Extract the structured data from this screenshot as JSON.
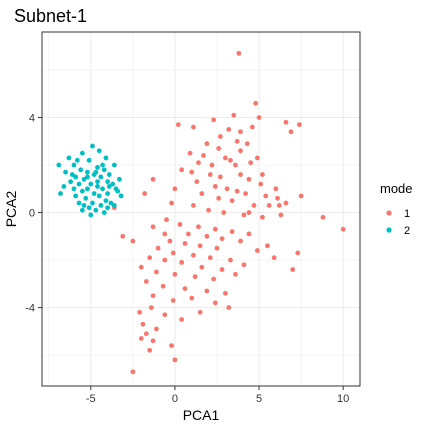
{
  "chart_data": {
    "type": "scatter",
    "title": "Subnet-1",
    "xlabel": "PCA1",
    "ylabel": "PCA2",
    "xlim": [
      -7.9,
      11.0
    ],
    "ylim": [
      -7.3,
      7.6
    ],
    "x_ticks": [
      -5,
      0,
      5,
      10
    ],
    "y_ticks": [
      -4,
      0,
      4
    ],
    "grid": true,
    "legend": {
      "title": "mode",
      "placement": "right"
    },
    "series": [
      {
        "name": "1",
        "color": "#F8766D",
        "points": [
          [
            3.8,
            6.7
          ],
          [
            4.8,
            4.6
          ],
          [
            3.5,
            4.1
          ],
          [
            5.0,
            4.0
          ],
          [
            0.2,
            3.7
          ],
          [
            1.1,
            3.6
          ],
          [
            2.3,
            3.9
          ],
          [
            3.2,
            3.5
          ],
          [
            3.9,
            3.4
          ],
          [
            4.6,
            3.6
          ],
          [
            6.6,
            3.8
          ],
          [
            7.4,
            3.7
          ],
          [
            6.9,
            3.4
          ],
          [
            3.7,
            3.0
          ],
          [
            4.3,
            2.9
          ],
          [
            1.7,
            2.4
          ],
          [
            2.6,
            2.7
          ],
          [
            3.0,
            2.3
          ],
          [
            1.4,
            2.1
          ],
          [
            2.2,
            2.0
          ],
          [
            3.3,
            2.2
          ],
          [
            3.6,
            2.0
          ],
          [
            4.5,
            2.1
          ],
          [
            4.9,
            2.3
          ],
          [
            0.4,
            1.8
          ],
          [
            1.0,
            1.7
          ],
          [
            2.1,
            1.6
          ],
          [
            2.7,
            1.5
          ],
          [
            3.9,
            1.6
          ],
          [
            4.4,
            1.4
          ],
          [
            5.1,
            1.2
          ],
          [
            1.3,
            1.3
          ],
          [
            2.4,
            1.1
          ],
          [
            3.1,
            1.0
          ],
          [
            3.7,
            0.9
          ],
          [
            4.2,
            0.8
          ],
          [
            5.4,
            0.7
          ],
          [
            6.1,
            0.6
          ],
          [
            7.5,
            0.7
          ],
          [
            0.0,
            1.0
          ],
          [
            1.6,
            0.8
          ],
          [
            2.6,
            0.6
          ],
          [
            3.4,
            0.5
          ],
          [
            4.7,
            0.3
          ],
          [
            5.6,
            0.3
          ],
          [
            6.6,
            0.4
          ],
          [
            -0.2,
            0.4
          ],
          [
            1.1,
            0.3
          ],
          [
            2.0,
            0.1
          ],
          [
            2.9,
            0.0
          ],
          [
            4.1,
            -0.1
          ],
          [
            5.2,
            -0.2
          ],
          [
            6.3,
            -0.1
          ],
          [
            -0.5,
            -0.3
          ],
          [
            0.3,
            -0.5
          ],
          [
            1.4,
            -0.6
          ],
          [
            2.4,
            -0.7
          ],
          [
            3.4,
            -0.8
          ],
          [
            4.4,
            -0.9
          ],
          [
            0.8,
            -0.9
          ],
          [
            1.9,
            -1.0
          ],
          [
            2.8,
            -1.1
          ],
          [
            3.9,
            -1.2
          ],
          [
            -0.3,
            -1.2
          ],
          [
            0.6,
            -1.3
          ],
          [
            1.5,
            -1.4
          ],
          [
            2.5,
            -1.5
          ],
          [
            -1.0,
            -1.5
          ],
          [
            -0.1,
            -1.7
          ],
          [
            1.1,
            -1.8
          ],
          [
            2.1,
            -1.9
          ],
          [
            3.3,
            -2.0
          ],
          [
            4.9,
            -1.6
          ],
          [
            5.9,
            -1.9
          ],
          [
            -1.5,
            -1.9
          ],
          [
            -0.6,
            -2.0
          ],
          [
            0.4,
            -2.1
          ],
          [
            1.6,
            -2.3
          ],
          [
            2.8,
            -2.4
          ],
          [
            4.1,
            -2.2
          ],
          [
            -2.0,
            -2.3
          ],
          [
            -1.1,
            -2.5
          ],
          [
            0.0,
            -2.6
          ],
          [
            1.2,
            -2.7
          ],
          [
            2.3,
            -2.8
          ],
          [
            3.6,
            -2.6
          ],
          [
            -1.7,
            -2.9
          ],
          [
            -0.7,
            -3.1
          ],
          [
            0.6,
            -3.2
          ],
          [
            1.9,
            -3.3
          ],
          [
            3.0,
            -3.4
          ],
          [
            -1.3,
            -3.5
          ],
          [
            -0.1,
            -3.7
          ],
          [
            1.0,
            -3.6
          ],
          [
            2.4,
            -3.8
          ],
          [
            -2.1,
            -4.2
          ],
          [
            -1.4,
            -4.0
          ],
          [
            -0.6,
            -4.3
          ],
          [
            0.4,
            -4.5
          ],
          [
            1.5,
            -4.2
          ],
          [
            3.2,
            -4.0
          ],
          [
            -1.9,
            -4.7
          ],
          [
            -1.1,
            -4.9
          ],
          [
            -1.7,
            -5.1
          ],
          [
            -2.0,
            -5.3
          ],
          [
            -1.3,
            -5.4
          ],
          [
            -1.5,
            -5.8
          ],
          [
            -0.2,
            -5.6
          ],
          [
            0.0,
            -6.2
          ],
          [
            -2.5,
            -6.7
          ],
          [
            -3.6,
            0.2
          ],
          [
            -3.1,
            -1.0
          ],
          [
            -2.5,
            -1.2
          ],
          [
            -1.3,
            1.4
          ],
          [
            -1.8,
            0.8
          ],
          [
            8.8,
            -0.2
          ],
          [
            10.0,
            -0.7
          ],
          [
            7.3,
            -1.7
          ],
          [
            6.2,
            0.3
          ],
          [
            7.0,
            -2.4
          ],
          [
            5.5,
            -1.4
          ],
          [
            4.4,
            0.0
          ],
          [
            -0.6,
            -0.9
          ],
          [
            -1.3,
            -0.6
          ],
          [
            0.9,
            2.5
          ],
          [
            1.9,
            2.9
          ],
          [
            2.7,
            3.2
          ],
          [
            3.9,
            2.6
          ],
          [
            5.2,
            1.6
          ],
          [
            6.0,
            1.0
          ]
        ]
      },
      {
        "name": "2",
        "color": "#00BFC4",
        "points": [
          [
            -4.9,
            2.8
          ],
          [
            -4.5,
            2.6
          ],
          [
            -5.5,
            2.5
          ],
          [
            -6.3,
            2.3
          ],
          [
            -4.1,
            2.3
          ],
          [
            -5.1,
            2.2
          ],
          [
            -6.0,
            2.0
          ],
          [
            -6.9,
            2.0
          ],
          [
            -3.6,
            2.0
          ],
          [
            -4.6,
            1.9
          ],
          [
            -5.6,
            1.8
          ],
          [
            -4.2,
            1.8
          ],
          [
            -5.2,
            1.7
          ],
          [
            -6.5,
            1.7
          ],
          [
            -3.9,
            1.6
          ],
          [
            -4.8,
            1.6
          ],
          [
            -5.9,
            1.5
          ],
          [
            -4.4,
            1.5
          ],
          [
            -3.3,
            1.4
          ],
          [
            -5.4,
            1.4
          ],
          [
            -6.2,
            1.3
          ],
          [
            -4.0,
            1.3
          ],
          [
            -5.0,
            1.2
          ],
          [
            -3.7,
            1.2
          ],
          [
            -5.7,
            1.2
          ],
          [
            -4.6,
            1.1
          ],
          [
            -6.0,
            1.0
          ],
          [
            -5.2,
            1.0
          ],
          [
            -4.3,
            1.0
          ],
          [
            -3.5,
            1.0
          ],
          [
            -5.5,
            0.9
          ],
          [
            -4.8,
            0.8
          ],
          [
            -4.0,
            0.8
          ],
          [
            -6.8,
            0.8
          ],
          [
            -5.9,
            0.7
          ],
          [
            -4.5,
            0.7
          ],
          [
            -3.2,
            0.7
          ],
          [
            -5.3,
            0.6
          ],
          [
            -4.1,
            0.5
          ],
          [
            -4.9,
            0.4
          ],
          [
            -5.7,
            0.4
          ],
          [
            -3.8,
            0.4
          ],
          [
            -4.4,
            0.3
          ],
          [
            -5.1,
            0.2
          ],
          [
            -4.7,
            0.1
          ],
          [
            -5.5,
            0.1
          ],
          [
            -3.6,
            0.3
          ],
          [
            -4.2,
            0.0
          ],
          [
            -5.0,
            -0.1
          ],
          [
            -4.6,
            1.3
          ],
          [
            -5.2,
            1.5
          ],
          [
            -3.9,
            1.1
          ],
          [
            -4.7,
            1.7
          ],
          [
            -5.8,
            2.2
          ],
          [
            -4.3,
            2.0
          ],
          [
            -6.6,
            1.1
          ],
          [
            -5.4,
            0.3
          ],
          [
            -3.4,
            0.9
          ],
          [
            -6.1,
            1.6
          ],
          [
            -4.0,
            0.2
          ]
        ]
      }
    ]
  }
}
